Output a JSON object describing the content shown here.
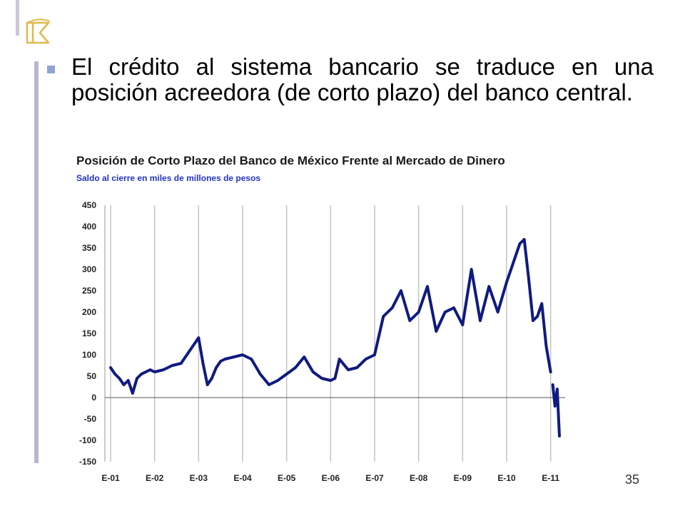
{
  "slide": {
    "bullet_text": "El crédito al sistema bancario se traduce en una posición acreedora (de corto plazo) del banco central.",
    "page_number": "35"
  },
  "colors": {
    "accent_bar": "#b8b8cc",
    "bullet": "#8fa3d6",
    "series_line": "#0f1a80",
    "subtitle": "#2233cc",
    "logo": "#e0b84a"
  },
  "chart_data": {
    "type": "line",
    "title": "Posición de Corto Plazo del Banco de México Frente al Mercado de Dinero",
    "subtitle": "Saldo al cierre en miles de millones de pesos",
    "xlabel": "",
    "ylabel": "",
    "ylim": [
      -150,
      450
    ],
    "yticks": [
      450,
      400,
      350,
      300,
      250,
      200,
      150,
      100,
      50,
      0,
      -50,
      -100,
      -150
    ],
    "xticks": [
      "E-01",
      "E-02",
      "E-03",
      "E-04",
      "E-05",
      "E-06",
      "E-07",
      "E-08",
      "E-09",
      "E-10",
      "E-11"
    ],
    "vertical_grid": true,
    "legend": "none",
    "series": [
      {
        "x": [
          2001.0,
          2001.1,
          2001.2,
          2001.3,
          2001.4,
          2001.5,
          2001.6,
          2001.7,
          2001.8,
          2001.9,
          2002.0,
          2002.2,
          2002.4,
          2002.6,
          2002.8,
          2003.0,
          2003.1,
          2003.2,
          2003.3,
          2003.4,
          2003.5,
          2003.6,
          2003.8,
          2004.0,
          2004.2,
          2004.4,
          2004.6,
          2004.8,
          2005.0,
          2005.2,
          2005.4,
          2005.6,
          2005.8,
          2006.0,
          2006.1,
          2006.2,
          2006.4,
          2006.6,
          2006.8,
          2007.0,
          2007.2,
          2007.4,
          2007.6,
          2007.8,
          2008.0,
          2008.2,
          2008.4,
          2008.6,
          2008.8,
          2009.0,
          2009.2,
          2009.4,
          2009.6,
          2009.8,
          2010.0,
          2010.1,
          2010.2,
          2010.3,
          2010.4,
          2010.5,
          2010.6,
          2010.7,
          2010.8,
          2010.9,
          2011.0
        ],
        "y": [
          70,
          55,
          45,
          30,
          40,
          10,
          45,
          55,
          60,
          65,
          60,
          65,
          75,
          80,
          110,
          140,
          80,
          30,
          45,
          70,
          85,
          90,
          95,
          100,
          90,
          55,
          30,
          40,
          55,
          70,
          95,
          60,
          45,
          40,
          45,
          90,
          65,
          70,
          90,
          100,
          190,
          210,
          250,
          180,
          200,
          260,
          155,
          200,
          210,
          170,
          300,
          180,
          260,
          200,
          270,
          300,
          330,
          360,
          370,
          280,
          180,
          190,
          220,
          120,
          60
        ]
      },
      {
        "x": [
          2011.05,
          2011.1,
          2011.15,
          2011.2
        ],
        "y": [
          30,
          -20,
          20,
          -90
        ]
      }
    ]
  }
}
